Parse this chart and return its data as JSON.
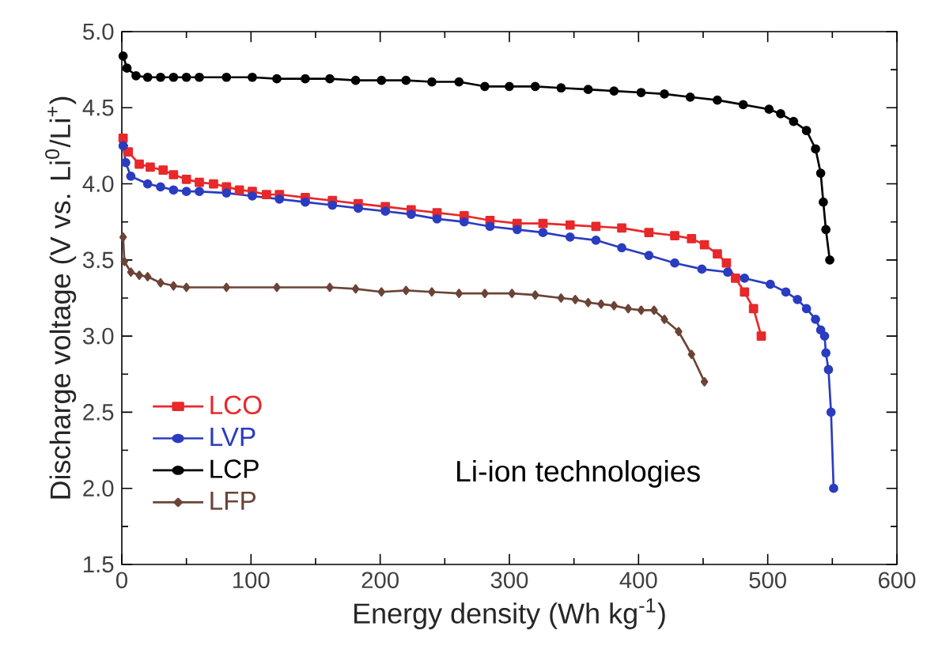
{
  "chart_data": {
    "type": "line",
    "xlabel": "Energy density (Wh kg$^{-1}$)",
    "ylabel": "Discharge voltage (V vs. Li$^{0}$/Li$^{+}$)",
    "xlim": [
      0,
      600
    ],
    "ylim": [
      1.5,
      5.0
    ],
    "xticks": [
      0,
      100,
      200,
      300,
      400,
      500,
      600
    ],
    "yticks": [
      1.5,
      {
        "value": 2,
        "label": "2.0"
      },
      2.5,
      {
        "value": 3,
        "label": "3.0"
      },
      3.5,
      {
        "value": 4,
        "label": "4.0"
      },
      4.5,
      {
        "value": 5,
        "label": "5.0"
      }
    ],
    "legend": "bottom left",
    "line_style": "solid",
    "annotations": [
      "Li-ion technologies"
    ],
    "series": [
      {
        "name": "LCO",
        "color": "#e8282a",
        "marker": "square",
        "x": [
          1,
          5,
          13.5,
          22,
          32,
          40,
          50,
          60,
          71,
          81,
          91,
          101,
          112,
          122,
          142,
          163,
          183,
          204,
          224,
          244,
          265,
          285,
          306,
          326,
          347,
          367,
          387,
          408,
          428,
          441,
          451,
          461,
          468,
          475,
          482,
          489,
          495
        ],
        "values": [
          4.3,
          4.21,
          4.13,
          4.11,
          4.09,
          4.06,
          4.03,
          4.01,
          4.0,
          3.98,
          3.96,
          3.95,
          3.93,
          3.93,
          3.91,
          3.89,
          3.87,
          3.85,
          3.83,
          3.81,
          3.79,
          3.76,
          3.74,
          3.74,
          3.73,
          3.72,
          3.71,
          3.68,
          3.66,
          3.64,
          3.6,
          3.54,
          3.48,
          3.38,
          3.29,
          3.18,
          3.0
        ]
      },
      {
        "name": "LVP",
        "color": "#2a3cc0",
        "marker": "circle",
        "x": [
          1,
          3,
          7,
          20,
          30,
          40,
          50,
          60,
          81,
          101,
          122,
          142,
          163,
          183,
          204,
          224,
          244,
          265,
          285,
          306,
          326,
          347,
          367,
          387,
          408,
          428,
          449,
          469,
          482,
          502,
          514,
          523,
          530,
          537,
          541,
          544,
          545,
          547,
          549,
          551
        ],
        "values": [
          4.25,
          4.14,
          4.05,
          4.0,
          3.98,
          3.96,
          3.95,
          3.95,
          3.94,
          3.92,
          3.9,
          3.88,
          3.86,
          3.84,
          3.82,
          3.8,
          3.77,
          3.75,
          3.72,
          3.7,
          3.68,
          3.65,
          3.63,
          3.58,
          3.53,
          3.48,
          3.44,
          3.42,
          3.38,
          3.34,
          3.29,
          3.24,
          3.18,
          3.11,
          3.04,
          3.0,
          2.89,
          2.78,
          2.5,
          2.0
        ]
      },
      {
        "name": "LCP",
        "color": "#000000",
        "marker": "circle",
        "x": [
          1,
          4,
          11,
          20,
          30,
          40,
          50,
          60,
          81,
          101,
          120,
          142,
          161,
          181,
          201,
          220,
          240,
          261,
          281,
          300,
          320,
          340,
          361,
          381,
          402,
          420,
          440,
          461,
          481,
          501,
          510,
          520,
          530,
          537,
          541,
          543,
          545,
          548
        ],
        "values": [
          4.84,
          4.76,
          4.71,
          4.7,
          4.7,
          4.7,
          4.7,
          4.7,
          4.7,
          4.7,
          4.69,
          4.69,
          4.69,
          4.68,
          4.68,
          4.68,
          4.67,
          4.67,
          4.64,
          4.64,
          4.64,
          4.63,
          4.62,
          4.61,
          4.6,
          4.59,
          4.57,
          4.55,
          4.52,
          4.49,
          4.46,
          4.41,
          4.35,
          4.23,
          4.07,
          3.88,
          3.7,
          3.5
        ]
      },
      {
        "name": "LFP",
        "color": "#6b4437",
        "marker": "diamond",
        "x": [
          1,
          2,
          7,
          13.5,
          20,
          30,
          40,
          50,
          81,
          120,
          161,
          181,
          201,
          220,
          240,
          261,
          281,
          302,
          320,
          340,
          351,
          361,
          371,
          381,
          392,
          402,
          412,
          420,
          431,
          441,
          451
        ],
        "values": [
          3.65,
          3.49,
          3.42,
          3.4,
          3.39,
          3.35,
          3.33,
          3.32,
          3.32,
          3.32,
          3.32,
          3.31,
          3.29,
          3.3,
          3.29,
          3.28,
          3.28,
          3.28,
          3.27,
          3.25,
          3.24,
          3.22,
          3.21,
          3.2,
          3.18,
          3.17,
          3.17,
          3.11,
          3.03,
          2.88,
          2.7
        ]
      }
    ]
  }
}
